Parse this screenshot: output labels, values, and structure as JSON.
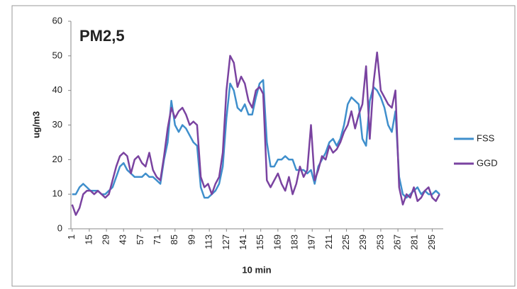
{
  "chart_data": {
    "type": "line",
    "title": "PM2,5",
    "x_label": "10 min",
    "y_label": "ug/m3",
    "x": [
      1,
      4,
      7,
      10,
      13,
      16,
      19,
      22,
      25,
      28,
      31,
      34,
      37,
      40,
      43,
      46,
      49,
      52,
      55,
      58,
      61,
      64,
      67,
      70,
      73,
      76,
      79,
      82,
      85,
      88,
      91,
      94,
      97,
      100,
      103,
      106,
      109,
      112,
      115,
      118,
      121,
      124,
      127,
      130,
      133,
      136,
      139,
      142,
      145,
      148,
      151,
      154,
      157,
      160,
      163,
      166,
      169,
      172,
      175,
      178,
      181,
      184,
      187,
      190,
      193,
      196,
      199,
      202,
      205,
      208,
      211,
      214,
      217,
      220,
      223,
      226,
      229,
      232,
      235,
      238,
      241,
      244,
      247,
      250,
      253,
      256,
      259,
      262,
      265,
      268,
      271,
      274,
      277,
      280,
      283,
      286,
      289,
      292,
      295,
      298,
      301
    ],
    "series": [
      {
        "name": "FSS",
        "color": "#3f8fcc",
        "values": [
          10,
          10,
          12,
          13,
          12,
          11,
          11,
          11,
          10,
          10,
          11,
          12,
          15,
          18,
          19,
          17,
          16,
          15,
          15,
          15,
          16,
          15,
          15,
          14,
          13,
          20,
          25,
          37,
          30,
          28,
          30,
          29,
          27,
          25,
          24,
          12,
          9,
          9,
          10,
          11,
          13,
          18,
          32,
          42,
          40,
          35,
          34,
          36,
          33,
          33,
          38,
          42,
          43,
          25,
          18,
          18,
          20,
          20,
          21,
          20,
          20,
          17,
          17,
          17,
          16,
          17,
          13,
          18,
          20,
          22,
          25,
          26,
          24,
          26,
          30,
          36,
          38,
          37,
          36,
          26,
          24,
          37,
          41,
          40,
          38,
          35,
          30,
          28,
          34,
          15,
          10,
          9,
          10,
          11,
          12,
          10,
          11,
          10,
          10,
          11,
          10
        ]
      },
      {
        "name": "GGD",
        "color": "#7a43a0",
        "values": [
          7,
          4,
          6,
          10,
          11,
          11,
          10,
          11,
          10,
          9,
          10,
          14,
          18,
          21,
          22,
          21,
          16,
          20,
          21,
          19,
          18,
          22,
          17,
          15,
          14,
          21,
          29,
          35,
          32,
          34,
          35,
          33,
          30,
          31,
          30,
          15,
          12,
          13,
          10,
          13,
          15,
          22,
          40,
          50,
          48,
          41,
          44,
          42,
          37,
          35,
          40,
          41,
          39,
          14,
          12,
          14,
          16,
          13,
          11,
          15,
          10,
          13,
          18,
          15,
          17,
          30,
          14,
          17,
          21,
          20,
          24,
          22,
          23,
          25,
          28,
          30,
          34,
          29,
          33,
          36,
          47,
          26,
          42,
          51,
          40,
          38,
          36,
          35,
          40,
          12,
          7,
          10,
          9,
          12,
          8,
          9,
          11,
          12,
          9,
          8,
          10
        ]
      }
    ],
    "xlim": [
      0,
      304
    ],
    "xticks": [
      1,
      15,
      29,
      43,
      57,
      71,
      85,
      99,
      113,
      127,
      141,
      155,
      169,
      183,
      197,
      211,
      225,
      239,
      253,
      267,
      281,
      295
    ],
    "ylim": [
      0,
      60
    ],
    "yticks": [
      0,
      10,
      20,
      30,
      40,
      50,
      60
    ],
    "grid": false,
    "legend": "right"
  }
}
